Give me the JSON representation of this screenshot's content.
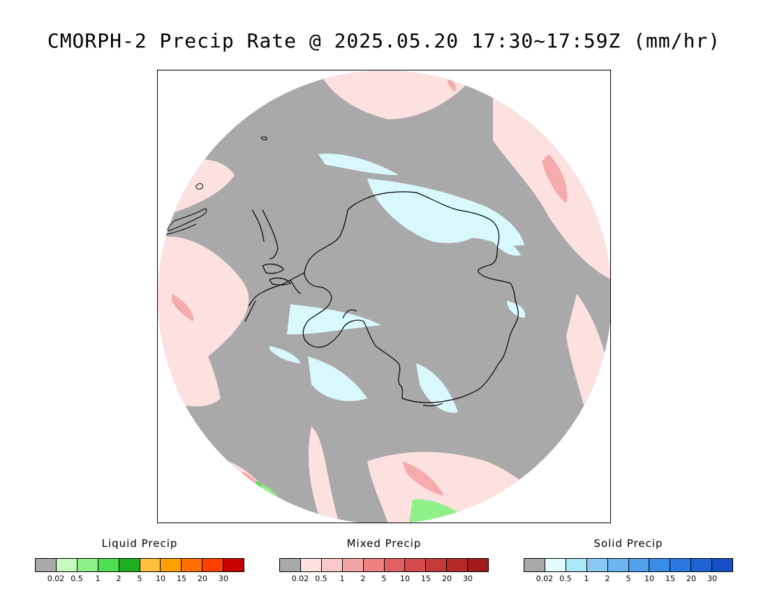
{
  "title": "CMORPH-2 Precip Rate @ 2025.05.20 17:30~17:59Z (mm/hr)",
  "map": {
    "projection": "south-polar-stereographic",
    "background_color": "#a9a9a9",
    "mixed_light_color": "#fde0e0",
    "snow_light_color": "#d8f8fc",
    "coastline_color": "#000000"
  },
  "legends": [
    {
      "title": "Liquid Precip",
      "colors": [
        "#a9a9a9",
        "#c8f9c0",
        "#8ff08a",
        "#4fe050",
        "#1fae1f",
        "#ffbf3f",
        "#ff9f00",
        "#ff6f00",
        "#ff3f00",
        "#c80000"
      ],
      "ticks": [
        "0.02",
        "0.5",
        "1",
        "2",
        "5",
        "10",
        "15",
        "20",
        "30"
      ]
    },
    {
      "title": "Mixed Precip",
      "colors": [
        "#a9a9a9",
        "#fde0e0",
        "#fbc8c8",
        "#f4a4a4",
        "#ee8080",
        "#e06060",
        "#d44a4a",
        "#c43a3a",
        "#b42828",
        "#a01c1c"
      ],
      "ticks": [
        "0.02",
        "0.5",
        "1",
        "2",
        "5",
        "10",
        "15",
        "20",
        "30"
      ]
    },
    {
      "title": "Solid Precip",
      "colors": [
        "#a9a9a9",
        "#e4fcff",
        "#a8e8f8",
        "#8cc8f4",
        "#6eb4f0",
        "#50a0ec",
        "#3a8ce6",
        "#2a78e0",
        "#1f64d4",
        "#1650c4"
      ],
      "ticks": [
        "0.02",
        "0.5",
        "1",
        "2",
        "5",
        "10",
        "15",
        "20",
        "30"
      ]
    }
  ]
}
